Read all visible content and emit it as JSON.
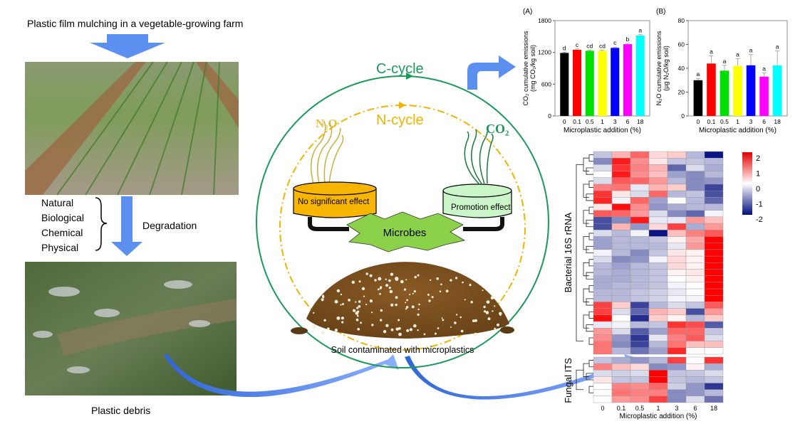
{
  "left": {
    "top_caption": "Plastic film mulching in a vegetable-growing farm",
    "degradation_factors": [
      "Natural",
      "Biological",
      "Chemical",
      "Physical"
    ],
    "degradation_label": "Degradation",
    "bottom_caption": "Plastic debris"
  },
  "center": {
    "c_cycle": "C-cycle",
    "n_cycle": "N-cycle",
    "n2o_label": "N₂O",
    "co2_label": "CO₂",
    "left_pan": "No significant effect",
    "right_pan": "Promotion effect",
    "microbes": "Microbes",
    "soil_caption": "Soil contaminated with microplastics"
  },
  "colors": {
    "c_cycle": "#1a9a5a",
    "n_cycle": "#f0b400",
    "arrow": "#5b8ff0",
    "left_pan": "#f7b500",
    "right_pan": "#c9f5c9",
    "microbes": "#8bd14a",
    "bars": [
      "#000000",
      "#ff0000",
      "#00e000",
      "#ffff00",
      "#0000ff",
      "#ff00ff",
      "#00ffff"
    ]
  },
  "chart_data": [
    {
      "type": "bar",
      "panel": "(A)",
      "categories": [
        "0",
        "0.1",
        "0.5",
        "1",
        "3",
        "6",
        "18"
      ],
      "values": [
        1190,
        1250,
        1230,
        1230,
        1285,
        1355,
        1520
      ],
      "errors": [
        15,
        15,
        15,
        15,
        15,
        15,
        15
      ],
      "letters": [
        "d",
        "c",
        "cd",
        "cd",
        "c",
        "b",
        "a"
      ],
      "xlabel": "Microplastic addition (%)",
      "ylabel_line1": "CO₂ cumulative emissions",
      "ylabel_line2": "(mg CO₂/kg soil)",
      "ylim": [
        0,
        1800
      ],
      "yticks": [
        "0",
        "600",
        "1200",
        "1800"
      ]
    },
    {
      "type": "bar",
      "panel": "(B)",
      "categories": [
        "0",
        "0.1",
        "0.5",
        "1",
        "3",
        "6",
        "18"
      ],
      "values": [
        30,
        44,
        38,
        42,
        42.5,
        33,
        42.5
      ],
      "errors": [
        1.5,
        6.5,
        4.5,
        6,
        9,
        3,
        12
      ],
      "letters": [
        "a",
        "a",
        "a",
        "a",
        "a",
        "a",
        "a"
      ],
      "xlabel": "Microplastic addition (%)",
      "ylabel_line1": "N₂O cumulative emissions",
      "ylabel_line2": "(µg N₂O/kg soil)",
      "ylim": [
        0,
        80
      ],
      "yticks": [
        "0",
        "20",
        "40",
        "60",
        "80"
      ]
    },
    {
      "type": "heatmap",
      "columns": [
        "0",
        "0.1",
        "0.5",
        "1",
        "3",
        "6",
        "18"
      ],
      "xlabel": "Microplastic addition (%)",
      "group_labels": [
        "Bacterial 16S rRNA",
        "Fungal ITS"
      ],
      "colorbar_ticks": [
        "2",
        "1",
        "0",
        "-1",
        "-2"
      ],
      "colorbar_range": [
        -2,
        2
      ],
      "bacterial": [
        [
          -0.5,
          0.6,
          1.2,
          0.3,
          0.4,
          -0.6,
          -2
        ],
        [
          -1,
          1.8,
          0.9,
          0.2,
          -0.5,
          -0.5,
          -0.6
        ],
        [
          -0.3,
          1.6,
          1.0,
          0.6,
          -1.3,
          -0.3,
          -0.7
        ],
        [
          0,
          1.8,
          0.9,
          0.5,
          -0.8,
          -1.0,
          -0.6
        ],
        [
          -0.3,
          1.3,
          1.2,
          0.8,
          -0.6,
          -1.0,
          -0.9
        ],
        [
          1.0,
          1.1,
          -0.2,
          0.6,
          0.4,
          -1.0,
          -1.6
        ],
        [
          1.6,
          0.2,
          -0.3,
          1.2,
          -0.6,
          -0.5,
          -1.5
        ],
        [
          1.7,
          -0.1,
          1.2,
          -0.8,
          0,
          -0.6,
          -1.3
        ],
        [
          0.2,
          1.9,
          0.9,
          -0.9,
          -0.7,
          -0.6,
          -0.6
        ],
        [
          1.3,
          1.2,
          0.8,
          -0.3,
          -1.0,
          -1.3,
          -0.1
        ],
        [
          -1.5,
          -1.0,
          1.8,
          -0.2,
          -0.2,
          0.8,
          0.5
        ],
        [
          -1.5,
          0.6,
          -0.9,
          0.3,
          1.5,
          -0.7,
          0.8
        ],
        [
          -0.3,
          -0.6,
          -0.1,
          -2.0,
          0.5,
          1.0,
          1.3
        ],
        [
          -0.8,
          -0.6,
          -0.6,
          -0.5,
          0.1,
          0.7,
          2.2
        ],
        [
          -0.8,
          -0.6,
          -0.6,
          -0.6,
          -0.2,
          0.8,
          2.2
        ],
        [
          -0.1,
          -0.6,
          -1.0,
          -0.5,
          0.2,
          0.1,
          2.3
        ],
        [
          -0.3,
          -1.0,
          -0.9,
          -0.1,
          0.3,
          0.1,
          2.3
        ],
        [
          -0.6,
          -0.8,
          -0.6,
          -0.5,
          0.3,
          0.1,
          2.3
        ],
        [
          -0.6,
          -0.7,
          -0.6,
          -0.5,
          0.1,
          0.2,
          2.3
        ],
        [
          -0.7,
          -0.7,
          -0.6,
          -0.5,
          0,
          0.1,
          2.3
        ],
        [
          -0.7,
          -0.6,
          -0.6,
          -0.5,
          -0.1,
          0,
          2.3
        ],
        [
          -0.6,
          -0.6,
          -0.5,
          -0.4,
          -0.2,
          0,
          2.3
        ],
        [
          -0.6,
          -0.6,
          -0.5,
          -0.4,
          -0.1,
          -0.1,
          2.3
        ],
        [
          1.5,
          0.4,
          -1.6,
          -0.6,
          -0.3,
          -0.5,
          1.3
        ],
        [
          1.5,
          -0.3,
          -1.3,
          0.6,
          0.4,
          -1.5,
          0.8
        ],
        [
          1.9,
          0,
          -1.8,
          0.4,
          0.1,
          -0.6,
          0.4
        ],
        [
          -0.2,
          -0.1,
          -0.6,
          -0.5,
          1.6,
          1.4,
          -1.4
        ],
        [
          0.8,
          -0.3,
          -1.4,
          -0.8,
          1.2,
          1.2,
          -0.5
        ],
        [
          0.9,
          -0.9,
          -1.7,
          -0.2,
          1.0,
          1.3,
          -0.3
        ],
        [
          1.1,
          -1.0,
          -1.6,
          -0.6,
          1.1,
          0.5,
          0.5
        ],
        [
          1.1,
          -0.6,
          -1.2,
          -0.8,
          1.7,
          0,
          0
        ]
      ],
      "fungal": [
        [
          -0.5,
          -0.7,
          -0.9,
          -0.6,
          1.5,
          0,
          1.6
        ],
        [
          1.0,
          0.5,
          0.3,
          -1.0,
          -0.9,
          0.1,
          -0.7
        ],
        [
          -0.3,
          -0.4,
          -0.3,
          2.4,
          -0.5,
          -0.5,
          -0.3
        ],
        [
          0.2,
          -0.5,
          -0.5,
          2.4,
          -0.5,
          -0.6,
          -0.5
        ],
        [
          0,
          1.0,
          0.9,
          1.2,
          -0.4,
          -0.9,
          -1.7
        ],
        [
          0,
          1.1,
          1.0,
          1.0,
          -1.0,
          -0.9,
          -0.6
        ],
        [
          0,
          0.8,
          0.9,
          1.5,
          -1.0,
          -0.3,
          -1.2
        ]
      ]
    }
  ]
}
